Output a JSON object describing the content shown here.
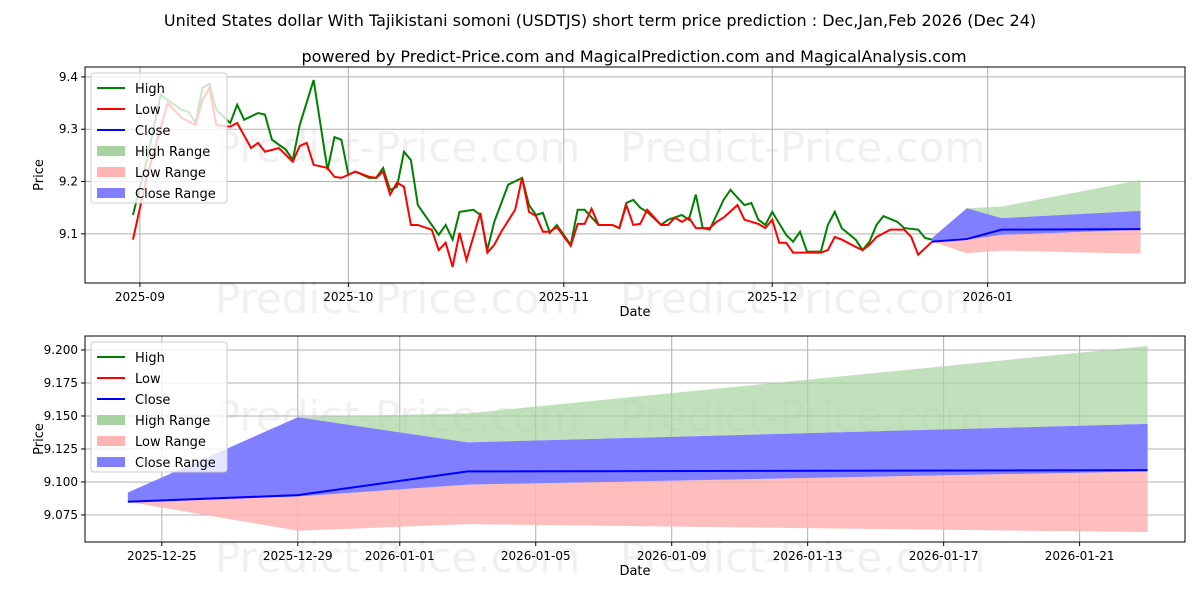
{
  "title": "United States dollar With Tajikistani somoni (USDTJS) short term price prediction : Dec,Jan,Feb 2026 (Dec 24)",
  "subtitle": "powered by Predict-Price.com and MagicalPrediction.com and MagicalAnalysis.com",
  "watermark": "Predict-Price.com",
  "colors": {
    "high": "#008000",
    "low": "#ff0000",
    "close": "#0000ff",
    "high_range": "#a6d3a0",
    "low_range": "#ffb3b3",
    "close_range": "#7f7fff"
  },
  "chart_data": [
    {
      "type": "line",
      "xlabel": "Date",
      "ylabel": "Price",
      "x_origin": "2025-09-01",
      "xlim_days": [
        -7.9,
        150.4
      ],
      "ylim": [
        9.006,
        9.419
      ],
      "yticks": [
        "9.1",
        "9.2",
        "9.3",
        "9.4"
      ],
      "xticks": [
        {
          "label": "2025-09",
          "date": "2025-09-01"
        },
        {
          "label": "2025-10",
          "date": "2025-10-01"
        },
        {
          "label": "2025-11",
          "date": "2025-11-01"
        },
        {
          "label": "2025-12",
          "date": "2025-12-01"
        },
        {
          "label": "2026-01",
          "date": "2026-01-01"
        }
      ],
      "legend": [
        "High",
        "Low",
        "Close",
        "High Range",
        "Low Range",
        "Close Range"
      ],
      "legend_position": "top-left",
      "grid": true,
      "history_high": [
        [
          -1,
          9.136
        ],
        [
          1,
          9.241
        ],
        [
          3,
          9.366
        ],
        [
          4,
          9.356
        ],
        [
          6,
          9.337
        ],
        [
          7,
          9.333
        ],
        [
          8,
          9.312
        ],
        [
          9,
          9.379
        ],
        [
          10,
          9.387
        ],
        [
          11,
          9.337
        ],
        [
          13,
          9.312
        ],
        [
          14,
          9.347
        ],
        [
          15,
          9.318
        ],
        [
          17,
          9.331
        ],
        [
          18,
          9.328
        ],
        [
          19,
          9.28
        ],
        [
          21,
          9.261
        ],
        [
          22,
          9.241
        ],
        [
          23,
          9.308
        ],
        [
          25,
          9.394
        ],
        [
          27,
          9.222
        ],
        [
          28,
          9.285
        ],
        [
          29,
          9.28
        ],
        [
          30,
          9.213
        ],
        [
          31,
          9.219
        ],
        [
          33,
          9.207
        ],
        [
          34,
          9.207
        ],
        [
          35,
          9.226
        ],
        [
          36,
          9.184
        ],
        [
          37,
          9.19
        ],
        [
          38,
          9.257
        ],
        [
          39,
          9.241
        ],
        [
          40,
          9.155
        ],
        [
          42,
          9.117
        ],
        [
          43,
          9.098
        ],
        [
          44,
          9.117
        ],
        [
          45,
          9.089
        ],
        [
          46,
          9.142
        ],
        [
          48,
          9.146
        ],
        [
          49,
          9.136
        ],
        [
          50,
          9.069
        ],
        [
          51,
          9.123
        ],
        [
          53,
          9.194
        ],
        [
          55,
          9.207
        ],
        [
          56,
          9.155
        ],
        [
          57,
          9.136
        ],
        [
          58,
          9.14
        ],
        [
          59,
          9.102
        ],
        [
          60,
          9.117
        ],
        [
          62,
          9.079
        ],
        [
          63,
          9.146
        ],
        [
          64,
          9.146
        ],
        [
          66,
          9.117
        ],
        [
          68,
          9.117
        ],
        [
          69,
          9.111
        ],
        [
          70,
          9.159
        ],
        [
          71,
          9.165
        ],
        [
          72,
          9.15
        ],
        [
          73,
          9.142
        ],
        [
          75,
          9.117
        ],
        [
          76,
          9.127
        ],
        [
          78,
          9.136
        ],
        [
          79,
          9.127
        ],
        [
          80,
          9.175
        ],
        [
          81,
          9.111
        ],
        [
          82,
          9.108
        ],
        [
          84,
          9.165
        ],
        [
          85,
          9.184
        ],
        [
          86,
          9.169
        ],
        [
          87,
          9.155
        ],
        [
          88,
          9.159
        ],
        [
          89,
          9.127
        ],
        [
          90,
          9.117
        ],
        [
          91,
          9.142
        ],
        [
          93,
          9.098
        ],
        [
          94,
          9.085
        ],
        [
          95,
          9.104
        ],
        [
          96,
          9.066
        ],
        [
          98,
          9.066
        ],
        [
          99,
          9.117
        ],
        [
          100,
          9.142
        ],
        [
          101,
          9.111
        ],
        [
          103,
          9.089
        ],
        [
          104,
          9.069
        ],
        [
          105,
          9.085
        ],
        [
          106,
          9.117
        ],
        [
          107,
          9.134
        ],
        [
          109,
          9.123
        ],
        [
          110,
          9.111
        ],
        [
          112,
          9.108
        ],
        [
          113,
          9.092
        ],
        [
          114,
          9.089
        ]
      ],
      "history_low": [
        [
          -1,
          9.089
        ],
        [
          1,
          9.209
        ],
        [
          4,
          9.35
        ],
        [
          6,
          9.322
        ],
        [
          8,
          9.308
        ],
        [
          9,
          9.356
        ],
        [
          10,
          9.379
        ],
        [
          11,
          9.308
        ],
        [
          13,
          9.305
        ],
        [
          14,
          9.312
        ],
        [
          16,
          9.264
        ],
        [
          17,
          9.274
        ],
        [
          18,
          9.257
        ],
        [
          20,
          9.264
        ],
        [
          22,
          9.238
        ],
        [
          23,
          9.268
        ],
        [
          24,
          9.274
        ],
        [
          25,
          9.232
        ],
        [
          27,
          9.226
        ],
        [
          28,
          9.209
        ],
        [
          29,
          9.207
        ],
        [
          31,
          9.219
        ],
        [
          33,
          9.209
        ],
        [
          34,
          9.207
        ],
        [
          35,
          9.219
        ],
        [
          36,
          9.175
        ],
        [
          37,
          9.198
        ],
        [
          38,
          9.19
        ],
        [
          39,
          9.117
        ],
        [
          40,
          9.117
        ],
        [
          42,
          9.108
        ],
        [
          43,
          9.069
        ],
        [
          44,
          9.083
        ],
        [
          45,
          9.037
        ],
        [
          46,
          9.102
        ],
        [
          47,
          9.05
        ],
        [
          49,
          9.14
        ],
        [
          50,
          9.064
        ],
        [
          51,
          9.079
        ],
        [
          52,
          9.104
        ],
        [
          54,
          9.146
        ],
        [
          55,
          9.207
        ],
        [
          56,
          9.142
        ],
        [
          57,
          9.134
        ],
        [
          58,
          9.104
        ],
        [
          59,
          9.104
        ],
        [
          60,
          9.113
        ],
        [
          62,
          9.077
        ],
        [
          63,
          9.119
        ],
        [
          64,
          9.119
        ],
        [
          65,
          9.148
        ],
        [
          66,
          9.117
        ],
        [
          68,
          9.117
        ],
        [
          69,
          9.111
        ],
        [
          70,
          9.155
        ],
        [
          71,
          9.117
        ],
        [
          72,
          9.119
        ],
        [
          73,
          9.146
        ],
        [
          75,
          9.117
        ],
        [
          76,
          9.117
        ],
        [
          77,
          9.131
        ],
        [
          78,
          9.123
        ],
        [
          79,
          9.131
        ],
        [
          80,
          9.111
        ],
        [
          82,
          9.111
        ],
        [
          83,
          9.123
        ],
        [
          84,
          9.131
        ],
        [
          86,
          9.155
        ],
        [
          87,
          9.127
        ],
        [
          89,
          9.119
        ],
        [
          90,
          9.111
        ],
        [
          91,
          9.127
        ],
        [
          92,
          9.083
        ],
        [
          93,
          9.083
        ],
        [
          94,
          9.064
        ],
        [
          96,
          9.064
        ],
        [
          98,
          9.064
        ],
        [
          99,
          9.069
        ],
        [
          100,
          9.094
        ],
        [
          101,
          9.089
        ],
        [
          103,
          9.075
        ],
        [
          104,
          9.069
        ],
        [
          105,
          9.079
        ],
        [
          106,
          9.094
        ],
        [
          108,
          9.108
        ],
        [
          110,
          9.108
        ],
        [
          111,
          9.094
        ],
        [
          112,
          9.06
        ],
        [
          114,
          9.085
        ]
      ]
    },
    {
      "type": "area",
      "xlabel": "Date",
      "ylabel": "Price",
      "x_origin": "2025-12-25",
      "xlim_days": [
        -2.26,
        30.1
      ],
      "ylim": [
        9.0545,
        9.2106
      ],
      "yticks": [
        "9.075",
        "9.100",
        "9.125",
        "9.150",
        "9.175",
        "9.200"
      ],
      "xticks": [
        {
          "label": "2025-12-25",
          "date": "2025-12-25"
        },
        {
          "label": "2025-12-29",
          "date": "2025-12-29"
        },
        {
          "label": "2026-01-01",
          "date": "2026-01-01"
        },
        {
          "label": "2026-01-05",
          "date": "2026-01-05"
        },
        {
          "label": "2026-01-09",
          "date": "2026-01-09"
        },
        {
          "label": "2026-01-13",
          "date": "2026-01-13"
        },
        {
          "label": "2026-01-17",
          "date": "2026-01-17"
        },
        {
          "label": "2026-01-21",
          "date": "2026-01-21"
        }
      ],
      "legend": [
        "High",
        "Low",
        "Close",
        "High Range",
        "Low Range",
        "Close Range"
      ],
      "legend_position": "top-left",
      "grid": true
    }
  ],
  "forecast": {
    "dates": [
      "2025-12-24",
      "2025-12-29",
      "2026-01-03",
      "2026-01-23"
    ],
    "close": [
      9.085,
      9.09,
      9.108,
      9.109
    ],
    "high_range_top": [
      9.092,
      9.149,
      9.152,
      9.203
    ],
    "close_range_top": [
      9.092,
      9.149,
      9.13,
      9.144
    ],
    "close_range_bottom": [
      9.085,
      9.089,
      9.098,
      9.108
    ],
    "low_range_bottom": [
      9.085,
      9.063,
      9.068,
      9.062
    ]
  }
}
